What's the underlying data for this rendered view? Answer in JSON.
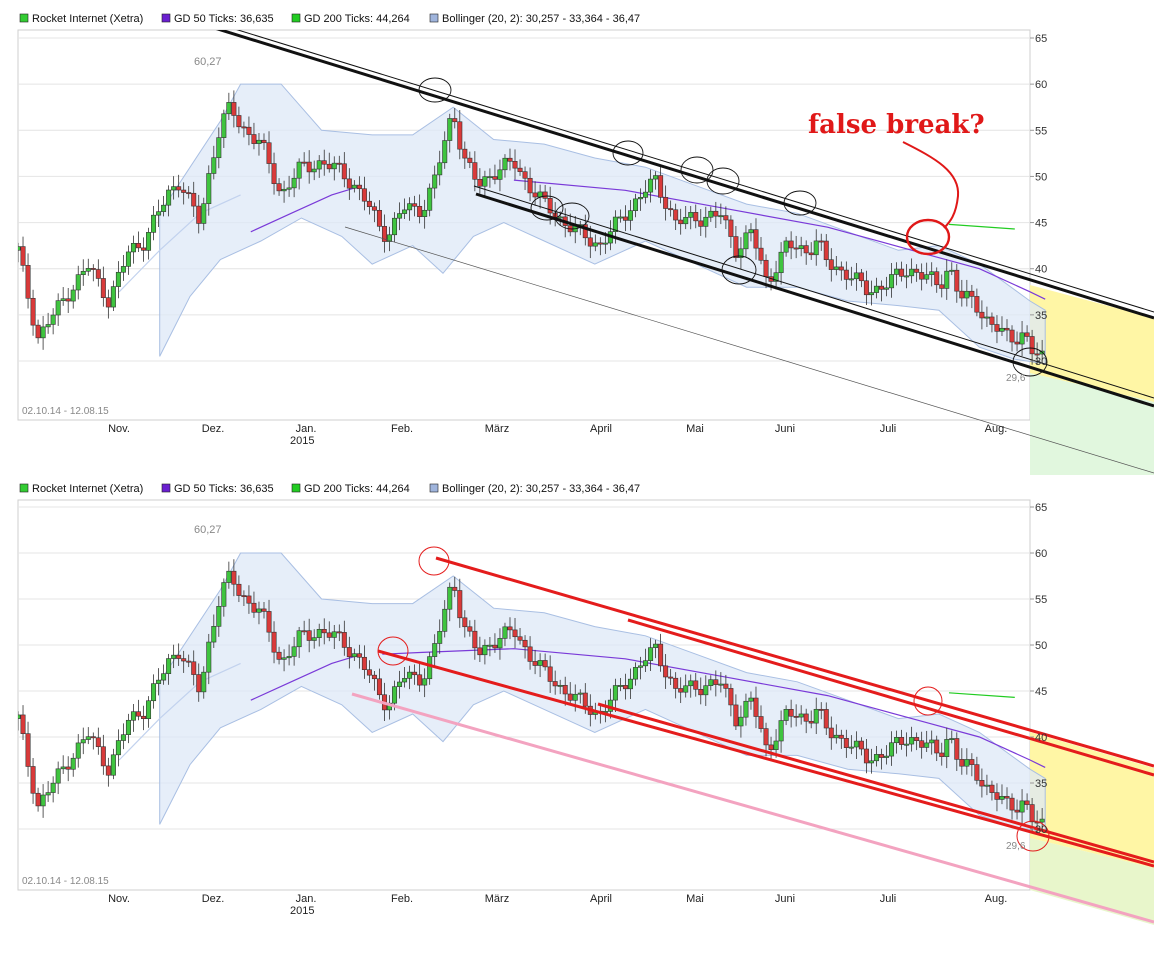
{
  "chart_data": [
    {
      "type": "candlestick",
      "legend": [
        {
          "label": "Rocket Internet (Xetra)",
          "color": "#33cc33"
        },
        {
          "label": "GD 50 Ticks: 36,635",
          "color": "#6a1fd0"
        },
        {
          "label": "GD 200 Ticks: 44,264",
          "color": "#22cc22"
        },
        {
          "label": "Bollinger (20, 2): 30,257 - 33,364 - 36,47",
          "color": "#9fb4dc"
        }
      ],
      "date_range": "02.10.14 - 12.08.15",
      "x_ticks": [
        "Nov.",
        "Dez.",
        "Jan.",
        "Feb.",
        "März",
        "April",
        "Mai",
        "Juni",
        "Juli",
        "Aug."
      ],
      "x_sub_label": "2015",
      "y_ticks": [
        30,
        35,
        40,
        45,
        50,
        55,
        60,
        65
      ],
      "ylim": [
        25.8,
        65.5
      ],
      "high_label": "60,27",
      "low_label": "29,6",
      "annotation": "false break?",
      "price_path": [
        [
          0.0,
          42
        ],
        [
          0.01,
          37
        ],
        [
          0.02,
          32.5
        ],
        [
          0.035,
          35
        ],
        [
          0.05,
          37.5
        ],
        [
          0.07,
          40.3
        ],
        [
          0.09,
          36.5
        ],
        [
          0.11,
          42
        ],
        [
          0.125,
          43
        ],
        [
          0.15,
          48.5
        ],
        [
          0.16,
          49.5
        ],
        [
          0.17,
          47
        ],
        [
          0.18,
          45
        ],
        [
          0.19,
          51
        ],
        [
          0.2,
          55.5
        ],
        [
          0.21,
          57.5
        ],
        [
          0.22,
          55.5
        ],
        [
          0.24,
          53.5
        ],
        [
          0.26,
          48
        ],
        [
          0.28,
          51
        ],
        [
          0.3,
          51.5
        ],
        [
          0.32,
          50.5
        ],
        [
          0.34,
          48
        ],
        [
          0.355,
          45
        ],
        [
          0.365,
          43.5
        ],
        [
          0.38,
          46.5
        ],
        [
          0.4,
          46.5
        ],
        [
          0.41,
          49
        ],
        [
          0.42,
          53
        ],
        [
          0.43,
          57.3
        ],
        [
          0.44,
          52
        ],
        [
          0.455,
          49
        ],
        [
          0.47,
          50.5
        ],
        [
          0.49,
          51.5
        ],
        [
          0.505,
          49
        ],
        [
          0.52,
          47
        ],
        [
          0.54,
          45
        ],
        [
          0.56,
          43.5
        ],
        [
          0.575,
          42.5
        ],
        [
          0.6,
          46
        ],
        [
          0.62,
          48.5
        ],
        [
          0.63,
          49.5
        ],
        [
          0.65,
          45
        ],
        [
          0.67,
          45.5
        ],
        [
          0.695,
          45.8
        ],
        [
          0.71,
          42
        ],
        [
          0.725,
          44
        ],
        [
          0.74,
          38.5
        ],
        [
          0.76,
          42.5
        ],
        [
          0.78,
          42
        ],
        [
          0.79,
          43
        ],
        [
          0.8,
          40.5
        ],
        [
          0.82,
          39.5
        ],
        [
          0.84,
          37.5
        ],
        [
          0.86,
          38.5
        ],
        [
          0.88,
          40
        ],
        [
          0.9,
          39
        ],
        [
          0.91,
          38
        ],
        [
          0.92,
          40.5
        ],
        [
          0.93,
          37
        ],
        [
          0.945,
          36.5
        ],
        [
          0.96,
          34
        ],
        [
          0.98,
          32.5
        ],
        [
          0.995,
          33
        ],
        [
          1.0,
          31
        ],
        [
          1.015,
          30.3
        ]
      ],
      "bollinger_upper": [
        [
          0.14,
          46
        ],
        [
          0.2,
          56
        ],
        [
          0.22,
          60
        ],
        [
          0.26,
          60
        ],
        [
          0.3,
          55
        ],
        [
          0.35,
          54.5
        ],
        [
          0.39,
          54.5
        ],
        [
          0.43,
          57.5
        ],
        [
          0.47,
          54
        ],
        [
          0.52,
          53.5
        ],
        [
          0.57,
          52
        ],
        [
          0.62,
          51
        ],
        [
          0.67,
          49
        ],
        [
          0.72,
          47
        ],
        [
          0.77,
          46
        ],
        [
          0.82,
          44
        ],
        [
          0.87,
          42
        ],
        [
          0.91,
          42.5
        ],
        [
          0.95,
          40.5
        ],
        [
          1.0,
          36.5
        ],
        [
          1.015,
          35.5
        ]
      ],
      "bollinger_lower": [
        [
          0.14,
          30.5
        ],
        [
          0.17,
          37
        ],
        [
          0.2,
          41
        ],
        [
          0.24,
          43
        ],
        [
          0.28,
          45.5
        ],
        [
          0.32,
          43.5
        ],
        [
          0.35,
          40.5
        ],
        [
          0.39,
          42.5
        ],
        [
          0.42,
          39.5
        ],
        [
          0.45,
          43.5
        ],
        [
          0.48,
          45
        ],
        [
          0.52,
          43
        ],
        [
          0.57,
          40.5
        ],
        [
          0.62,
          43
        ],
        [
          0.67,
          40.5
        ],
        [
          0.72,
          38
        ],
        [
          0.77,
          38
        ],
        [
          0.82,
          36.5
        ],
        [
          0.87,
          36
        ],
        [
          0.91,
          35.5
        ],
        [
          0.95,
          31.5
        ],
        [
          0.985,
          30.2
        ],
        [
          1.015,
          29.7
        ]
      ],
      "sma_purple": [
        [
          0.49,
          49.6
        ],
        [
          0.6,
          48.5
        ],
        [
          0.7,
          46.5
        ],
        [
          0.8,
          44.5
        ],
        [
          0.9,
          41.5
        ],
        [
          0.95,
          40
        ],
        [
          1.0,
          37.5
        ],
        [
          1.015,
          36.7
        ]
      ],
      "sma_purple_top": [
        [
          0.36,
          49
        ],
        [
          0.4,
          49.2
        ],
        [
          0.49,
          49.6
        ],
        [
          0.6,
          48.5
        ],
        [
          0.7,
          46.5
        ],
        [
          0.8,
          44.5
        ],
        [
          0.9,
          41.5
        ],
        [
          0.95,
          40
        ],
        [
          1.0,
          37.5
        ],
        [
          1.015,
          36.7
        ]
      ],
      "ma200_green": [
        [
          0.92,
          44.8
        ],
        [
          0.985,
          44.3
        ]
      ],
      "ma_left": [
        [
          0.23,
          44
        ],
        [
          0.27,
          46
        ],
        [
          0.31,
          48
        ],
        [
          0.34,
          49
        ]
      ],
      "ma_left_top": [
        [
          0.23,
          44
        ],
        [
          0.27,
          46
        ],
        [
          0.31,
          48
        ],
        [
          0.34,
          49
        ]
      ],
      "ma_left_pale": [
        [
          0.1,
          37.5
        ],
        [
          0.14,
          42
        ],
        [
          0.18,
          46
        ],
        [
          0.22,
          48
        ]
      ]
    },
    {
      "type": "candlestick",
      "legend": [
        {
          "label": "Rocket Internet (Xetra)",
          "color": "#33cc33"
        },
        {
          "label": "GD 50 Ticks: 36,635",
          "color": "#6a1fd0"
        },
        {
          "label": "GD 200 Ticks: 44,264",
          "color": "#22cc22"
        },
        {
          "label": "Bollinger (20, 2): 30,257 - 33,364 - 36,47",
          "color": "#9fb4dc"
        }
      ],
      "date_range": "02.10.14 - 12.08.15",
      "x_ticks": [
        "Nov.",
        "Dez.",
        "Jan.",
        "Feb.",
        "März",
        "April",
        "Mai",
        "Juni",
        "Juli",
        "Aug."
      ],
      "x_sub_label": "2015",
      "y_ticks": [
        30,
        35,
        40,
        45,
        50,
        55,
        60,
        65
      ],
      "high_label": "60,27",
      "low_label": "29,6"
    }
  ]
}
